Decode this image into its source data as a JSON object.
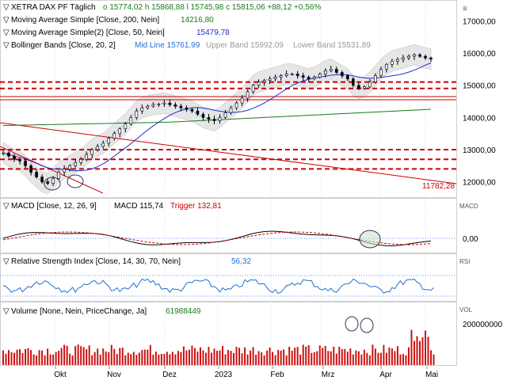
{
  "legend": {
    "main_prefix": "XETRA DAX PF  Täglich",
    "ohlc": "o 15774,02  h 15868,88  l 15745,98  c 15815,06  +88,12  +0,56%",
    "ma200": "Moving Average Simple [Close, 200, Nein]",
    "ma200_value": "14216,80",
    "ma50": "Moving Average Simple(2) [Close, 50, Nein]",
    "ma50_value": "15479,78",
    "bb": "Bollinger Bands [Close, 20, 2]",
    "bb_mid": "Mid Line 15761,99",
    "bb_upper": "Upper Band 15992,09",
    "bb_lower": "Lower Band 15531,89",
    "trend_label": "11782,28",
    "macd": "MACD [Close, 12, 26, 9]",
    "macd_value": "MACD 115,74",
    "macd_trigger": "Trigger 132,81",
    "macd_tag": "MACD",
    "macd_zero": "0,00",
    "rsi": "Relative Strength Index [Close, 14, 30, 70, Nein]",
    "rsi_value": "56,32",
    "rsi_tag": "RSI",
    "vol": "Volume [None, Nein, PriceChange, Ja]",
    "vol_value": "61988449",
    "vol_tag": "VOL",
    "vol_tick": "200000000"
  },
  "colors": {
    "price": "#000000",
    "ma200": "#1a7a1a",
    "ma50": "#1f2fd0",
    "bollinger_fill": "#d6d6d6",
    "bollinger_mid": "#6a8cff",
    "resistance": "#cc0000",
    "macd_trigger": "#cc0000",
    "rsi": "#1f6fd0",
    "volume": "#cc1111"
  },
  "chart_data": {
    "type": "candlestick",
    "title": "XETRA DAX PF",
    "period": "Täglich",
    "x_tick_labels": [
      "Okt",
      "Nov",
      "Dez",
      "2023",
      "Feb",
      "Mrz",
      "Apr",
      "Mai"
    ],
    "y_tick_labels": [
      "17000,00",
      "16000,00",
      "15000,00",
      "14000,00",
      "13000,00",
      "12000,00"
    ],
    "ylim": [
      11500,
      17650
    ],
    "horizontal_levels": [
      15100,
      14900,
      14650,
      14550,
      13000,
      12700,
      12400
    ],
    "trendline_value": 11782.28,
    "close_series": [
      12900,
      12800,
      12700,
      12650,
      12500,
      12300,
      12150,
      12000,
      11950,
      12100,
      12300,
      12400,
      12500,
      12600,
      12700,
      12850,
      13000,
      13100,
      13200,
      13350,
      13500,
      13650,
      13800,
      14000,
      14200,
      14300,
      14350,
      14400,
      14420,
      14450,
      14400,
      14350,
      14300,
      14250,
      14200,
      14100,
      14000,
      13950,
      13900,
      14000,
      14150,
      14300,
      14450,
      14600,
      14800,
      15000,
      15100,
      15150,
      15200,
      15250,
      15300,
      15350,
      15350,
      15300,
      15250,
      15200,
      15250,
      15350,
      15450,
      15500,
      15400,
      15300,
      15200,
      15000,
      14900,
      14950,
      15100,
      15300,
      15500,
      15650,
      15750,
      15800,
      15850,
      15900,
      15950,
      15900,
      15850,
      15815
    ]
  }
}
